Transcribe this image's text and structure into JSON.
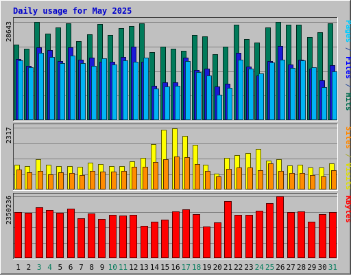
{
  "chart_data": {
    "type": "bar",
    "title": "Daily usage for May 2025",
    "x": [
      "1",
      "2",
      "3",
      "4",
      "5",
      "6",
      "7",
      "8",
      "9",
      "10",
      "11",
      "12",
      "13",
      "14",
      "15",
      "16",
      "17",
      "18",
      "19",
      "20",
      "21",
      "22",
      "23",
      "24",
      "25",
      "26",
      "27",
      "28",
      "29",
      "30",
      "31"
    ],
    "weekend_days": [
      "3",
      "4",
      "10",
      "11",
      "17",
      "18",
      "24",
      "25",
      "31"
    ],
    "panels": [
      {
        "id": "hits-files-pages",
        "max_label": "28643",
        "ylim": [
          0,
          28643
        ],
        "label_parts": [
          {
            "text": "Pages",
            "color": "#00ccff"
          },
          {
            "text": " / ",
            "color": "#2a4a99"
          },
          {
            "text": "Files",
            "color": "#0000ff"
          },
          {
            "text": " / ",
            "color": "#2a4a99"
          },
          {
            "text": "Hits",
            "color": "#006d4f"
          }
        ],
        "series": [
          {
            "name": "Hits",
            "color": "#007a5a",
            "values": [
              22100,
              20800,
              28600,
              25200,
              27000,
              28200,
              23100,
              25100,
              28000,
              24900,
              26800,
              27400,
              28200,
              19800,
              21500,
              20800,
              20300,
              24900,
              24500,
              19300,
              21500,
              27900,
              23700,
              22700,
              27000,
              28600,
              27900,
              27800,
              24300,
              25700,
              28200
            ]
          },
          {
            "name": "Files",
            "color": "#1a1ad6",
            "values": [
              17900,
              15800,
              21300,
              20400,
              17300,
              21200,
              17600,
              18300,
              17000,
              17000,
              18400,
              21400,
              17100,
              10000,
              11000,
              11000,
              18300,
              14700,
              15000,
              9800,
              10700,
              19600,
              15700,
              13000,
              17300,
              21600,
              16200,
              17600,
              15000,
              11600,
              16000
            ]
          },
          {
            "name": "Pages",
            "color": "#00b4f4",
            "values": [
              17400,
              15400,
              19600,
              18500,
              16600,
              18800,
              16600,
              15900,
              18100,
              16200,
              17400,
              17100,
              18300,
              9300,
              9900,
              10000,
              17200,
              14000,
              13000,
              7500,
              9400,
              17600,
              15000,
              13600,
              16900,
              17600,
              15300,
              17400,
              15400,
              9700,
              14200
            ]
          }
        ]
      },
      {
        "id": "visits-sites",
        "max_label": "2317",
        "ylim": [
          0,
          2317
        ],
        "label_parts": [
          {
            "text": "Sites",
            "color": "#ff8800"
          },
          {
            "text": " / ",
            "color": "#aaaa33"
          },
          {
            "text": "Visits",
            "color": "#dddd00"
          }
        ],
        "series": [
          {
            "name": "Visits",
            "color": "#ffff00",
            "values": [
              920,
              880,
              1130,
              920,
              870,
              880,
              850,
              1000,
              950,
              870,
              870,
              1050,
              1180,
              1700,
              2230,
              2300,
              2010,
              1670,
              920,
              600,
              1180,
              1280,
              1370,
              1520,
              1080,
              1130,
              890,
              920,
              830,
              830,
              990
            ]
          },
          {
            "name": "Sites",
            "color": "#ff8c00",
            "values": [
              750,
              650,
              690,
              570,
              640,
              620,
              550,
              690,
              680,
              680,
              690,
              840,
              840,
              1020,
              1140,
              1230,
              1220,
              960,
              690,
              500,
              780,
              820,
              830,
              720,
              990,
              700,
              630,
              630,
              550,
              480,
              730
            ]
          }
        ]
      },
      {
        "id": "kbytes",
        "max_label": "2350236",
        "ylim": [
          0,
          2350236
        ],
        "label_parts": [
          {
            "text": "KBytes",
            "color": "#ff0000"
          }
        ],
        "series": [
          {
            "name": "KBytes",
            "color": "#ff0000",
            "values": [
              1740000,
              1730000,
              1930000,
              1840000,
              1730000,
              1890000,
              1510000,
              1690000,
              1480000,
              1640000,
              1630000,
              1650000,
              1240000,
              1380000,
              1450000,
              1780000,
              1850000,
              1660000,
              1210000,
              1370000,
              2180000,
              1640000,
              1640000,
              1790000,
              2080000,
              2350236,
              1760000,
              1780000,
              1390000,
              1670000,
              1750000
            ]
          }
        ]
      }
    ],
    "colors": {
      "background": "#c0c0c0",
      "plot_background": "#c0c0c0",
      "title": "#0000cc",
      "gridline": "#808080",
      "tick_weekday": "#000000",
      "tick_weekend": "#007a5a",
      "frame_dark": "#404040"
    }
  }
}
